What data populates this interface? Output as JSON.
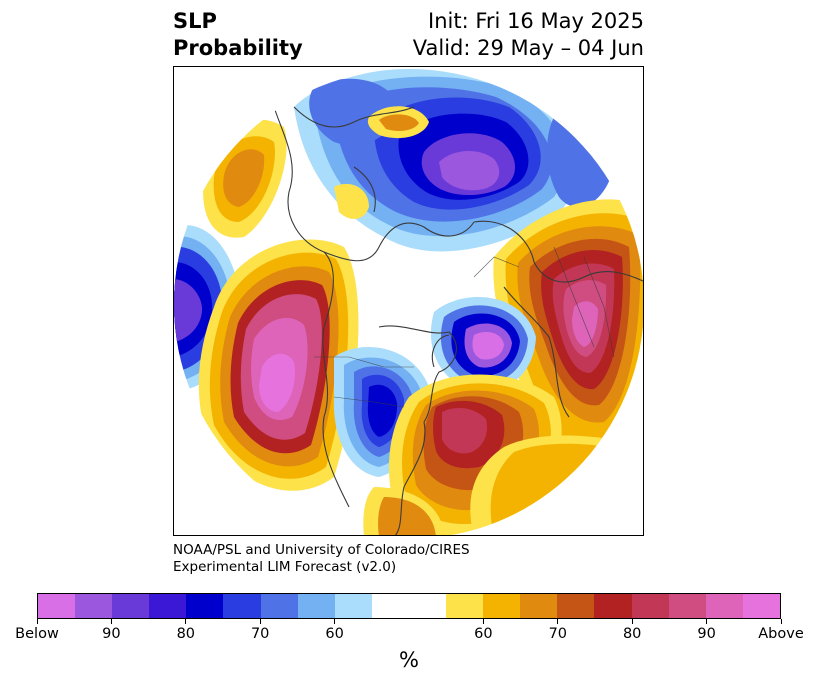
{
  "title": {
    "left_line1": "SLP",
    "left_line2": "Probability",
    "right_line1": "Init: Fri 16 May 2025",
    "right_line2": "Valid: 29 May – 04 Jun"
  },
  "credit": {
    "line1": "NOAA/PSL and University of Colorado/CIRES",
    "line2": "Experimental LIM Forecast (v2.0)"
  },
  "colorbar": {
    "colors": [
      "#d86fe6",
      "#9b57de",
      "#6a3ad8",
      "#3b17d6",
      "#0000cc",
      "#2a3de0",
      "#4f73e6",
      "#74b1f3",
      "#aadcfb",
      "#ffffff",
      "#ffffff",
      "#fde24a",
      "#f4b300",
      "#e08a10",
      "#c55515",
      "#b22222",
      "#c23755",
      "#cf4d80",
      "#dd64b8",
      "#e673dd"
    ],
    "tick_labels": [
      "Below",
      "90",
      "80",
      "70",
      "60",
      "60",
      "70",
      "80",
      "90",
      "Above"
    ],
    "unit": "%"
  },
  "legend_colors": {
    "below_strong": "#d86fe6",
    "below_mid": "#0000cc",
    "below_weak": "#aadcfb",
    "neutral": "#ffffff",
    "above_weak": "#fde24a",
    "above_mid": "#b22222",
    "above_strong": "#e673dd"
  }
}
